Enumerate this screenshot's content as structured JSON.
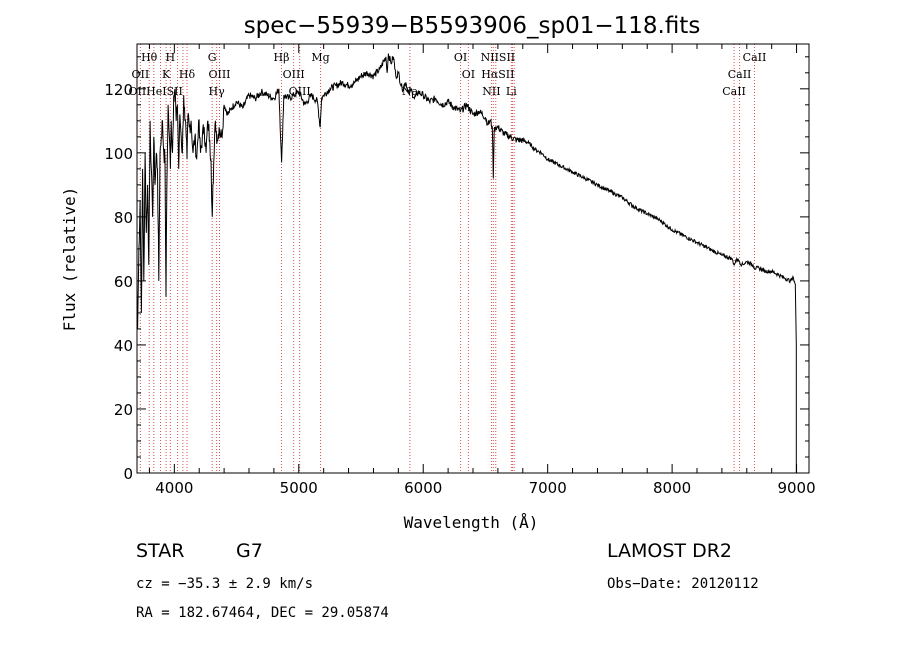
{
  "chart_data": {
    "type": "line",
    "title": "spec−55939−B5593906_sp01−118.fits",
    "xlabel": "Wavelength (Å)",
    "ylabel": "Flux (relative)",
    "xlim": [
      3700,
      9100
    ],
    "ylim": [
      0,
      134
    ],
    "xticks": [
      4000,
      5000,
      6000,
      7000,
      8000,
      9000
    ],
    "yticks": [
      0,
      20,
      40,
      60,
      80,
      100,
      120
    ],
    "series": [
      {
        "name": "flux",
        "x": [
          3705,
          3715,
          3725,
          3735,
          3745,
          3755,
          3765,
          3775,
          3785,
          3795,
          3805,
          3815,
          3825,
          3835,
          3845,
          3855,
          3865,
          3875,
          3885,
          3895,
          3905,
          3915,
          3925,
          3933,
          3940,
          3950,
          3960,
          3968,
          3975,
          3985,
          3995,
          4005,
          4015,
          4025,
          4035,
          4045,
          4055,
          4065,
          4075,
          4085,
          4095,
          4102,
          4110,
          4120,
          4135,
          4150,
          4165,
          4180,
          4195,
          4210,
          4225,
          4240,
          4255,
          4270,
          4285,
          4295,
          4300,
          4305,
          4310,
          4320,
          4330,
          4345,
          4360,
          4380,
          4400,
          4430,
          4460,
          4500,
          4550,
          4600,
          4650,
          4700,
          4750,
          4800,
          4840,
          4862,
          4880,
          4920,
          4960,
          5000,
          5050,
          5100,
          5150,
          5172,
          5183,
          5200,
          5250,
          5300,
          5350,
          5400,
          5450,
          5500,
          5550,
          5600,
          5650,
          5700,
          5710,
          5720,
          5740,
          5760,
          5780,
          5800,
          5830,
          5860,
          5890,
          5896,
          5930,
          5960,
          6000,
          6050,
          6100,
          6150,
          6200,
          6250,
          6300,
          6350,
          6400,
          6450,
          6500,
          6520,
          6540,
          6555,
          6563,
          6570,
          6580,
          6600,
          6650,
          6700,
          6750,
          6800,
          6850,
          6900,
          6950,
          7000,
          7100,
          7200,
          7300,
          7400,
          7500,
          7600,
          7700,
          7800,
          7900,
          8000,
          8100,
          8200,
          8300,
          8400,
          8480,
          8500,
          8520,
          8542,
          8560,
          8600,
          8650,
          8662,
          8700,
          8750,
          8800,
          8850,
          8900,
          8950,
          8975,
          8990,
          8998
        ],
        "y": [
          45,
          70,
          85,
          50,
          95,
          60,
          100,
          75,
          90,
          65,
          110,
          95,
          80,
          105,
          90,
          100,
          95,
          60,
          100,
          105,
          110,
          100,
          98,
          55,
          90,
          115,
          105,
          95,
          110,
          100,
          118,
          120,
          110,
          115,
          95,
          112,
          105,
          100,
          118,
          110,
          105,
          98,
          112,
          108,
          110,
          100,
          105,
          98,
          110,
          100,
          105,
          108,
          100,
          110,
          104,
          98,
          85,
          80,
          90,
          100,
          110,
          104,
          108,
          105,
          115,
          112,
          114,
          116,
          114,
          118,
          117,
          119,
          118,
          117,
          120,
          97,
          118,
          117,
          118,
          119,
          115,
          118,
          116,
          108,
          117,
          118,
          120,
          121,
          122,
          121,
          122,
          124,
          125,
          124,
          126,
          130,
          125,
          131,
          128,
          130,
          124,
          125,
          120,
          122,
          118,
          120,
          117,
          119,
          118,
          116,
          117,
          115,
          116,
          114,
          113,
          115,
          112,
          113,
          111,
          109,
          110,
          108,
          92,
          107,
          108,
          108,
          106,
          105,
          104,
          104,
          103,
          101,
          100,
          98,
          96,
          94,
          92,
          90,
          88,
          86,
          83,
          81,
          79,
          76,
          74,
          72,
          70,
          68,
          67,
          65,
          67,
          66,
          65,
          66,
          65,
          64,
          64,
          63,
          63,
          62,
          61,
          60,
          61,
          59,
          40
        ]
      }
    ],
    "spectral_lines": [
      {
        "label": "Hθ",
        "wavelength": 3798,
        "tier": 1
      },
      {
        "label": "H",
        "wavelength": 3968,
        "tier": 1
      },
      {
        "label": "G",
        "wavelength": 4304,
        "tier": 1
      },
      {
        "label": "Hβ",
        "wavelength": 4861,
        "tier": 1
      },
      {
        "label": "Mg",
        "wavelength": 5175,
        "tier": 1
      },
      {
        "label": "OI",
        "wavelength": 6300,
        "tier": 1
      },
      {
        "label": "NIISII",
        "wavelength": 6600,
        "tier": 1
      },
      {
        "label": "CaII",
        "wavelength": 8662,
        "tier": 1
      },
      {
        "label": "OII",
        "wavelength": 3727,
        "tier": 2
      },
      {
        "label": "K",
        "wavelength": 3934,
        "tier": 2
      },
      {
        "label": "Hδ",
        "wavelength": 4102,
        "tier": 2
      },
      {
        "label": "OIII",
        "wavelength": 4363,
        "tier": 2
      },
      {
        "label": "OIII",
        "wavelength": 4959,
        "tier": 2
      },
      {
        "label": "OI",
        "wavelength": 6363,
        "tier": 2
      },
      {
        "label": "HαSII",
        "wavelength": 6600,
        "tier": 2
      },
      {
        "label": "CaII",
        "wavelength": 8542,
        "tier": 2
      },
      {
        "label": "OIIHeISII",
        "wavelength": 3850,
        "tier": 3
      },
      {
        "label": "Hγ",
        "wavelength": 4340,
        "tier": 3
      },
      {
        "label": "OIII",
        "wavelength": 5007,
        "tier": 3
      },
      {
        "label": "Na",
        "wavelength": 5893,
        "tier": 3
      },
      {
        "label": "NII",
        "wavelength": 6548,
        "tier": 3
      },
      {
        "label": "Li",
        "wavelength": 6708,
        "tier": 3
      },
      {
        "label": "CaII",
        "wavelength": 8498,
        "tier": 3
      }
    ],
    "line_markers": [
      3727,
      3798,
      3835,
      3889,
      3934,
      3968,
      4026,
      4069,
      4102,
      4304,
      4340,
      4363,
      4861,
      4959,
      5007,
      5175,
      5893,
      6300,
      6363,
      6548,
      6563,
      6583,
      6708,
      6717,
      6731,
      8498,
      8542,
      8662
    ],
    "annotations": {
      "class": "STAR",
      "subclass": "G7",
      "survey": "LAMOST DR2",
      "cz": "cz = −35.3 ± 2.9 km/s",
      "obs_date": "Obs−Date: 20120112",
      "coords": "RA = 182.67464, DEC =  29.05874"
    }
  }
}
